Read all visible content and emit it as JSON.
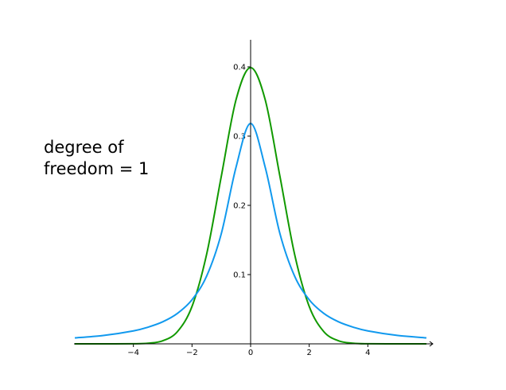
{
  "chart_data": {
    "type": "line",
    "annotation": "degree of\nfreedom = 1",
    "xlim": [
      -6.2,
      6.2
    ],
    "ylim": [
      0,
      0.44
    ],
    "x_ticks": [
      -4,
      -2,
      0,
      2,
      4
    ],
    "x_tick_labels": [
      "−4",
      "−2",
      "0",
      "2",
      "4"
    ],
    "y_ticks": [
      0.1,
      0.2,
      0.3,
      0.4
    ],
    "y_tick_labels": [
      "0.1",
      "0.2",
      "0.3",
      "0.4"
    ],
    "grid": false,
    "legend": "none",
    "series": [
      {
        "color": "#119900",
        "x": [
          -6,
          -5,
          -4,
          -3.5,
          -3,
          -2.5,
          -2,
          -1.5,
          -1,
          -0.5,
          0,
          0.5,
          1,
          1.5,
          2,
          2.5,
          3,
          3.5,
          4,
          5,
          6
        ],
        "y": [
          0.0,
          0.0,
          0.0001,
          0.0009,
          0.0044,
          0.0175,
          0.054,
          0.1295,
          0.242,
          0.3521,
          0.3989,
          0.3521,
          0.242,
          0.1295,
          0.054,
          0.0175,
          0.0044,
          0.0009,
          0.0001,
          0.0,
          0.0
        ]
      },
      {
        "color": "#1199ee",
        "x": [
          -6,
          -5,
          -4,
          -3.5,
          -3,
          -2.5,
          -2,
          -1.5,
          -1,
          -0.5,
          0,
          0.5,
          1,
          1.5,
          2,
          2.5,
          3,
          3.5,
          4,
          5,
          6
        ],
        "y": [
          0.0086,
          0.0122,
          0.0187,
          0.0241,
          0.0318,
          0.0439,
          0.0637,
          0.0979,
          0.1592,
          0.2546,
          0.3183,
          0.2546,
          0.1592,
          0.0979,
          0.0637,
          0.0439,
          0.0318,
          0.0241,
          0.0187,
          0.0122,
          0.0086
        ]
      }
    ]
  }
}
